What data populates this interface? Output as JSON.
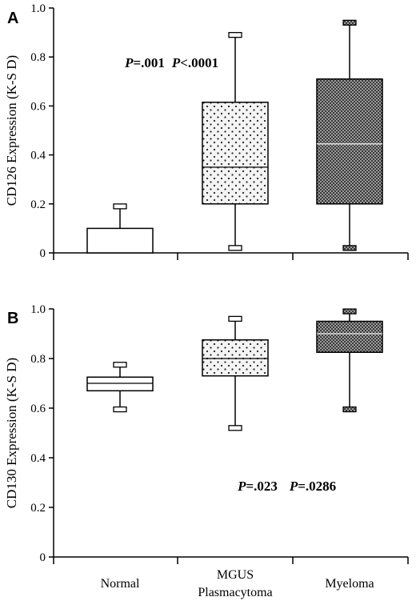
{
  "chart_data": [
    {
      "type": "box",
      "panel": "A",
      "ylabel": "CD126 Expression (K-S D)",
      "ylim": [
        0,
        1.0
      ],
      "yticks": [
        "0",
        "0.2",
        "0.4",
        "0.6",
        "0.8",
        "1.0"
      ],
      "categories": [
        "Normal",
        "MGUS Plasmacytoma",
        "Myeloma"
      ],
      "boxes": [
        {
          "category": "Normal",
          "min": 0,
          "q1": 0,
          "median": 0,
          "q3": 0.1,
          "max": 0.19,
          "fill": "white"
        },
        {
          "category": "MGUS Plasmacytoma",
          "min": 0.02,
          "q1": 0.2,
          "median": 0.35,
          "q3": 0.615,
          "max": 0.89,
          "fill": "dots"
        },
        {
          "category": "Myeloma",
          "min": 0.02,
          "q1": 0.2,
          "median": 0.445,
          "q3": 0.71,
          "max": 0.94,
          "fill": "dense"
        }
      ],
      "annotations": [
        {
          "text_prefix": "P",
          "text_value": "=.001",
          "between": [
            "Normal",
            "MGUS Plasmacytoma"
          ]
        },
        {
          "text_prefix": "P",
          "text_value": "<.0001",
          "between": [
            "MGUS Plasmacytoma",
            "Myeloma"
          ]
        }
      ]
    },
    {
      "type": "box",
      "panel": "B",
      "ylabel": "CD130 Expression (K-S D)",
      "ylim": [
        0,
        1.0
      ],
      "yticks": [
        "0",
        "0.2",
        "0.4",
        "0.6",
        "0.8",
        "1.0"
      ],
      "categories": [
        "Normal",
        "MGUS Plasmacytoma",
        "Myeloma"
      ],
      "boxes": [
        {
          "category": "Normal",
          "min": 0.595,
          "q1": 0.67,
          "median": 0.7,
          "q3": 0.725,
          "max": 0.775,
          "fill": "white"
        },
        {
          "category": "MGUS Plasmacytoma",
          "min": 0.52,
          "q1": 0.73,
          "median": 0.8,
          "q3": 0.875,
          "max": 0.96,
          "fill": "dots"
        },
        {
          "category": "Myeloma",
          "min": 0.595,
          "q1": 0.825,
          "median": 0.9,
          "q3": 0.95,
          "max": 0.99,
          "fill": "dense"
        }
      ],
      "annotations": [
        {
          "text_prefix": "P",
          "text_value": "=.023",
          "between": [
            "Normal",
            "MGUS Plasmacytoma"
          ]
        },
        {
          "text_prefix": "P",
          "text_value": "=.0286",
          "between": [
            "MGUS Plasmacytoma",
            "Myeloma"
          ]
        }
      ]
    }
  ],
  "category_labels": [
    [
      "Normal"
    ],
    [
      "MGUS",
      "Plasmacytoma"
    ],
    [
      "Myeloma"
    ]
  ]
}
